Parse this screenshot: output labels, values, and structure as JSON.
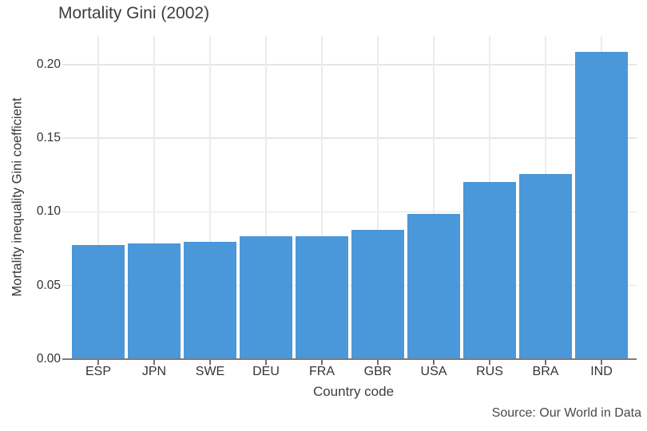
{
  "page": {
    "title": "Mortality Gini (2002)",
    "source_note": "Source: Our World in Data"
  },
  "chart_data": {
    "type": "bar",
    "title": "Mortality Gini (2002)",
    "xlabel": "Country code",
    "ylabel": "Mortality inequality Gini coefficient",
    "categories": [
      "ESP",
      "JPN",
      "SWE",
      "DEU",
      "FRA",
      "GBR",
      "USA",
      "RUS",
      "BRA",
      "IND"
    ],
    "values": [
      0.077,
      0.078,
      0.079,
      0.083,
      0.083,
      0.087,
      0.098,
      0.12,
      0.125,
      0.208
    ],
    "yticks": [
      0.0,
      0.05,
      0.1,
      0.15,
      0.2
    ],
    "ytick_labels": [
      "0.00",
      "0.05",
      "0.10",
      "0.15",
      "0.20"
    ],
    "ylim": [
      0,
      0.2195
    ],
    "grid": true,
    "legend_position": "none",
    "bar_color": "#4a97d9",
    "source": "Source: Our World in Data"
  },
  "colors": {
    "bar": "#4a97d9",
    "grid_h": "#e6e6e6",
    "grid_v": "#ececec",
    "axis_line": "#7b7b7b",
    "tick": "#6f6f6f",
    "title_text": "#3d3d3d",
    "tick_text": "#333333",
    "source_text": "#494949",
    "background": "#ffffff"
  }
}
